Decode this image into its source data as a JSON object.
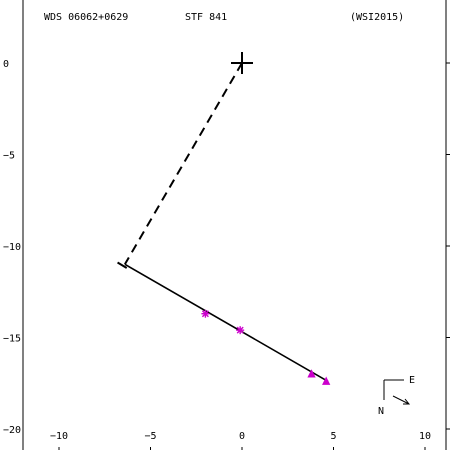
{
  "header": {
    "wds_id": "WDS 06062+0629",
    "discoverer": "STF 841",
    "reference": "(WSI2015)"
  },
  "compass": {
    "east_label": "E",
    "north_label": "N"
  },
  "chart_data": {
    "type": "scatter",
    "title": "",
    "xlabel": "",
    "ylabel": "",
    "xlim": [
      -12,
      11
    ],
    "ylim": [
      -21,
      2.5
    ],
    "x_ticks": [
      -10,
      -5,
      0,
      5,
      10
    ],
    "y_ticks": [
      0,
      -5,
      -10,
      -15,
      -20
    ],
    "x_tick_labels": [
      "−10",
      "−5",
      "0",
      "5",
      "10"
    ],
    "y_tick_labels": [
      "0",
      "−5",
      "−10",
      "−15",
      "−20"
    ],
    "primary": {
      "x": 0,
      "y": 0,
      "marker": "plus"
    },
    "connector": {
      "from": [
        0,
        0
      ],
      "to": [
        -6.4,
        -11.0
      ],
      "style": "dashed"
    },
    "fit_line": {
      "from": [
        -6.4,
        -11.0
      ],
      "to": [
        4.7,
        -17.4
      ],
      "style": "solid"
    },
    "end_tick": {
      "from": [
        -6.8,
        -10.9
      ],
      "to": [
        -6.3,
        -11.2
      ]
    },
    "observations": [
      {
        "x": -2.0,
        "y": -13.7,
        "marker": "asterisk",
        "color": "#cc00cc"
      },
      {
        "x": -0.1,
        "y": -14.6,
        "marker": "asterisk",
        "color": "#cc00cc"
      },
      {
        "x": 3.8,
        "y": -17.0,
        "marker": "triangle",
        "color": "#cc00cc"
      },
      {
        "x": 4.6,
        "y": -17.4,
        "marker": "triangle",
        "color": "#cc00cc"
      }
    ],
    "grid": false
  }
}
